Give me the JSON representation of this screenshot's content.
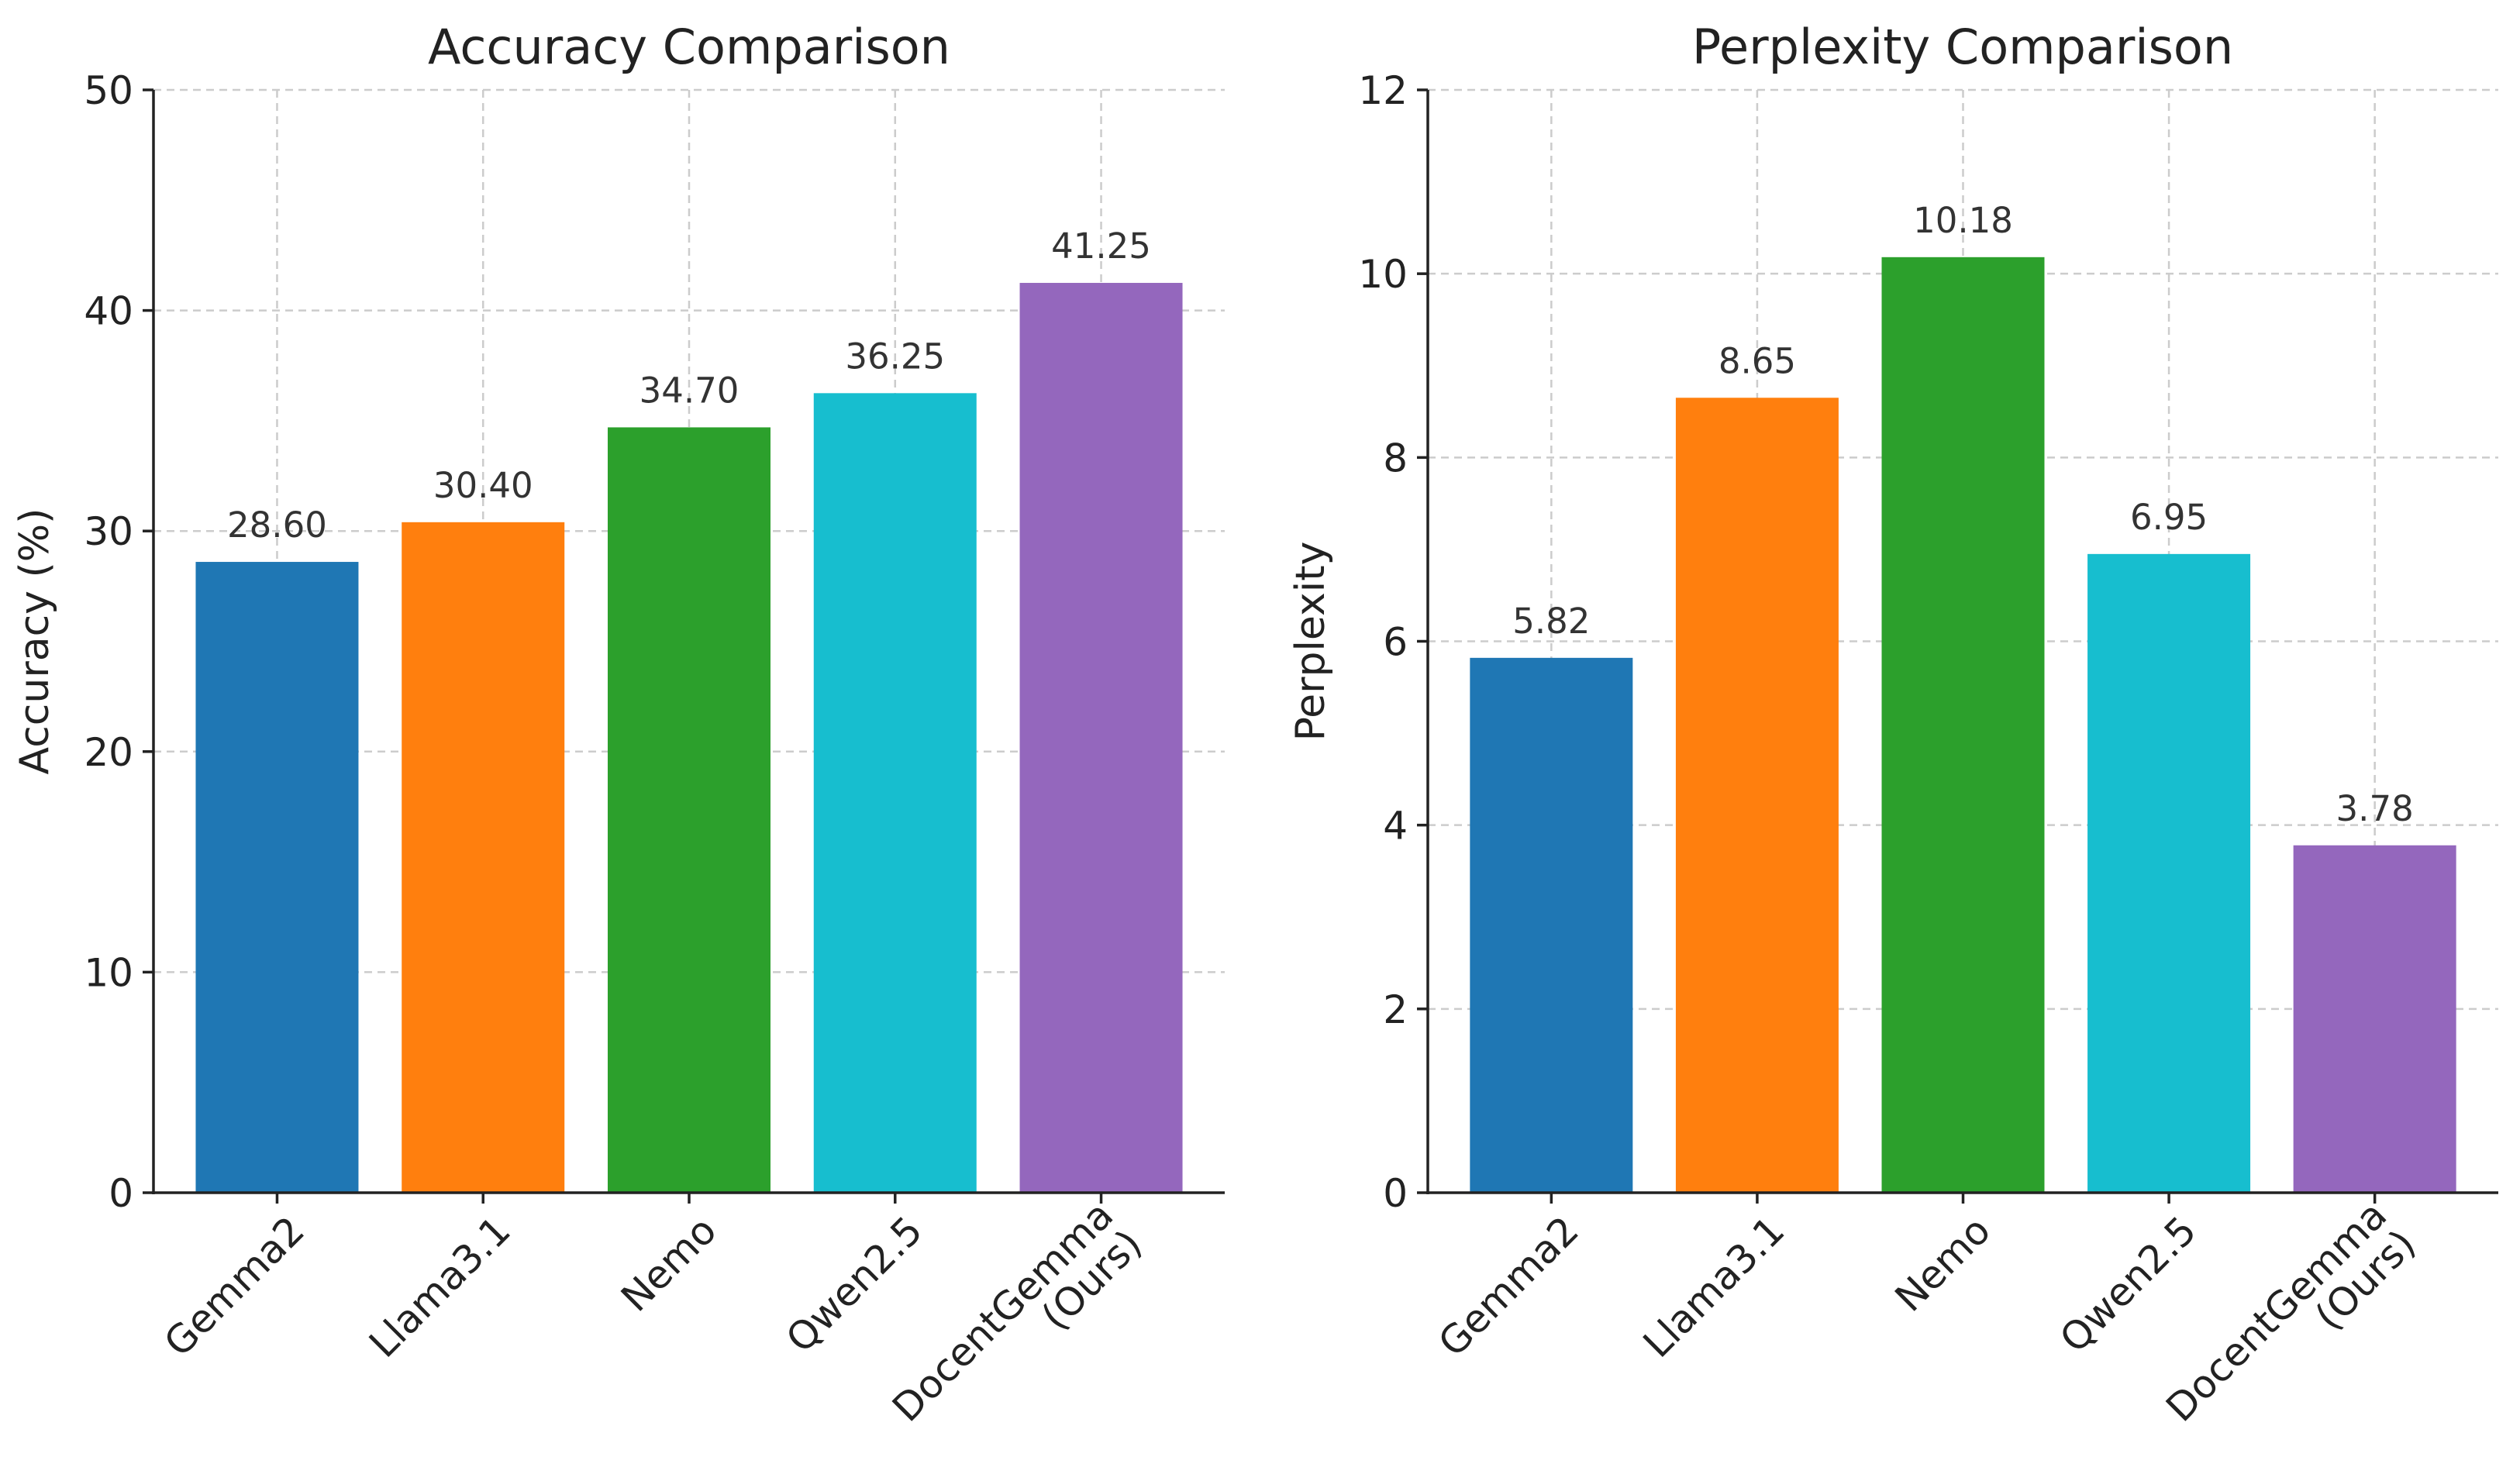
{
  "chart_data": [
    {
      "type": "bar",
      "title": "Accuracy Comparison",
      "xlabel": "",
      "ylabel": "Accuracy (%)",
      "ylim": [
        0,
        50
      ],
      "yticks": [
        0,
        10,
        20,
        30,
        40,
        50
      ],
      "grid": true,
      "categories": [
        [
          "Gemma2"
        ],
        [
          "Llama3.1"
        ],
        [
          "Nemo"
        ],
        [
          "Qwen2.5"
        ],
        [
          "DocentGemma",
          "(Ours)"
        ]
      ],
      "values": [
        28.6,
        30.4,
        34.7,
        36.25,
        41.25
      ],
      "value_labels": [
        "28.60",
        "30.40",
        "34.70",
        "36.25",
        "41.25"
      ],
      "colors": [
        "#1f77b4",
        "#ff7f0e",
        "#2ca02c",
        "#17becf",
        "#9467bd"
      ]
    },
    {
      "type": "bar",
      "title": "Perplexity Comparison",
      "xlabel": "",
      "ylabel": "Perplexity",
      "ylim": [
        0,
        12
      ],
      "yticks": [
        0,
        2,
        4,
        6,
        8,
        10,
        12
      ],
      "grid": true,
      "categories": [
        [
          "Gemma2"
        ],
        [
          "Llama3.1"
        ],
        [
          "Nemo"
        ],
        [
          "Qwen2.5"
        ],
        [
          "DocentGemma",
          "(Ours)"
        ]
      ],
      "values": [
        5.82,
        8.65,
        10.18,
        6.95,
        3.78
      ],
      "value_labels": [
        "5.82",
        "8.65",
        "10.18",
        "6.95",
        "3.78"
      ],
      "colors": [
        "#1f77b4",
        "#ff7f0e",
        "#2ca02c",
        "#17becf",
        "#9467bd"
      ]
    }
  ]
}
